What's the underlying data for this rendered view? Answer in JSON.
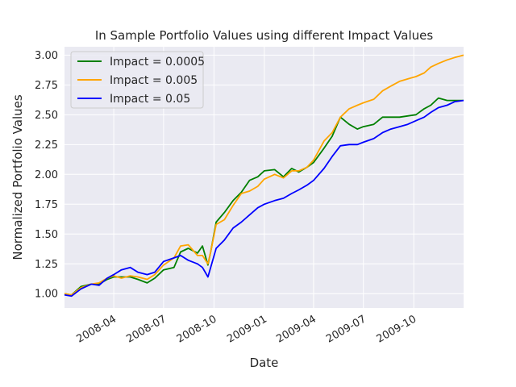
{
  "chart_data": {
    "type": "line",
    "title": "In Sample Portfolio Values using different Impact Values",
    "xlabel": "Date",
    "ylabel": "Normalized Portfolio Values",
    "xlim": [
      "2008-01-02",
      "2009-12-31"
    ],
    "ylim": [
      0.88,
      3.07
    ],
    "grid": true,
    "background": "#eaeaf2",
    "legend_position": "top-left",
    "x_ticks": [
      {
        "date": "2008-04-01",
        "label": "2008-04"
      },
      {
        "date": "2008-07-01",
        "label": "2008-07"
      },
      {
        "date": "2008-10-01",
        "label": "2008-10"
      },
      {
        "date": "2009-01-01",
        "label": "2009-01"
      },
      {
        "date": "2009-04-01",
        "label": "2009-04"
      },
      {
        "date": "2009-07-01",
        "label": "2009-07"
      },
      {
        "date": "2009-10-01",
        "label": "2009-10"
      }
    ],
    "y_ticks": [
      1.0,
      1.25,
      1.5,
      1.75,
      2.0,
      2.25,
      2.5,
      2.75,
      3.0
    ],
    "y_tick_labels": [
      "1.00",
      "1.25",
      "1.50",
      "1.75",
      "2.00",
      "2.25",
      "2.50",
      "2.75",
      "3.00"
    ],
    "series": [
      {
        "name": "Impact = 0.0005",
        "color": "#008000",
        "points": [
          [
            "2008-01-02",
            1.0
          ],
          [
            "2008-01-15",
            0.99
          ],
          [
            "2008-02-01",
            1.06
          ],
          [
            "2008-02-20",
            1.08
          ],
          [
            "2008-03-05",
            1.08
          ],
          [
            "2008-03-20",
            1.12
          ],
          [
            "2008-04-01",
            1.14
          ],
          [
            "2008-04-15",
            1.14
          ],
          [
            "2008-05-01",
            1.14
          ],
          [
            "2008-05-15",
            1.12
          ],
          [
            "2008-06-01",
            1.09
          ],
          [
            "2008-06-15",
            1.13
          ],
          [
            "2008-07-01",
            1.2
          ],
          [
            "2008-07-20",
            1.22
          ],
          [
            "2008-08-01",
            1.35
          ],
          [
            "2008-08-15",
            1.38
          ],
          [
            "2008-09-01",
            1.34
          ],
          [
            "2008-09-10",
            1.4
          ],
          [
            "2008-09-20",
            1.24
          ],
          [
            "2008-09-25",
            1.35
          ],
          [
            "2008-10-05",
            1.6
          ],
          [
            "2008-10-20",
            1.68
          ],
          [
            "2008-11-05",
            1.78
          ],
          [
            "2008-11-20",
            1.85
          ],
          [
            "2008-12-05",
            1.95
          ],
          [
            "2008-12-20",
            1.98
          ],
          [
            "2009-01-01",
            2.03
          ],
          [
            "2009-01-20",
            2.04
          ],
          [
            "2009-02-05",
            1.98
          ],
          [
            "2009-02-20",
            2.05
          ],
          [
            "2009-03-05",
            2.02
          ],
          [
            "2009-03-20",
            2.06
          ],
          [
            "2009-04-01",
            2.1
          ],
          [
            "2009-04-20",
            2.22
          ],
          [
            "2009-05-05",
            2.32
          ],
          [
            "2009-05-20",
            2.48
          ],
          [
            "2009-06-05",
            2.42
          ],
          [
            "2009-06-20",
            2.38
          ],
          [
            "2009-07-01",
            2.4
          ],
          [
            "2009-07-20",
            2.42
          ],
          [
            "2009-08-05",
            2.48
          ],
          [
            "2009-08-20",
            2.48
          ],
          [
            "2009-09-05",
            2.48
          ],
          [
            "2009-09-20",
            2.49
          ],
          [
            "2009-10-05",
            2.5
          ],
          [
            "2009-10-20",
            2.55
          ],
          [
            "2009-11-01",
            2.58
          ],
          [
            "2009-11-15",
            2.64
          ],
          [
            "2009-12-01",
            2.62
          ],
          [
            "2009-12-15",
            2.62
          ],
          [
            "2009-12-31",
            2.62
          ]
        ]
      },
      {
        "name": "Impact = 0.005",
        "color": "#ffa500",
        "points": [
          [
            "2008-01-02",
            1.0
          ],
          [
            "2008-01-15",
            0.99
          ],
          [
            "2008-02-01",
            1.05
          ],
          [
            "2008-02-20",
            1.08
          ],
          [
            "2008-03-05",
            1.09
          ],
          [
            "2008-03-20",
            1.13
          ],
          [
            "2008-04-01",
            1.15
          ],
          [
            "2008-04-15",
            1.13
          ],
          [
            "2008-05-01",
            1.15
          ],
          [
            "2008-05-15",
            1.14
          ],
          [
            "2008-06-01",
            1.12
          ],
          [
            "2008-06-15",
            1.16
          ],
          [
            "2008-07-01",
            1.24
          ],
          [
            "2008-07-20",
            1.3
          ],
          [
            "2008-08-01",
            1.4
          ],
          [
            "2008-08-15",
            1.41
          ],
          [
            "2008-09-01",
            1.32
          ],
          [
            "2008-09-10",
            1.32
          ],
          [
            "2008-09-20",
            1.25
          ],
          [
            "2008-09-25",
            1.35
          ],
          [
            "2008-10-05",
            1.58
          ],
          [
            "2008-10-20",
            1.62
          ],
          [
            "2008-11-05",
            1.74
          ],
          [
            "2008-11-20",
            1.84
          ],
          [
            "2008-12-05",
            1.86
          ],
          [
            "2008-12-20",
            1.9
          ],
          [
            "2009-01-01",
            1.96
          ],
          [
            "2009-01-20",
            2.0
          ],
          [
            "2009-02-05",
            1.97
          ],
          [
            "2009-02-20",
            2.03
          ],
          [
            "2009-03-05",
            2.03
          ],
          [
            "2009-03-20",
            2.06
          ],
          [
            "2009-04-01",
            2.12
          ],
          [
            "2009-04-20",
            2.28
          ],
          [
            "2009-05-05",
            2.35
          ],
          [
            "2009-05-20",
            2.48
          ],
          [
            "2009-06-05",
            2.55
          ],
          [
            "2009-06-20",
            2.58
          ],
          [
            "2009-07-01",
            2.6
          ],
          [
            "2009-07-20",
            2.63
          ],
          [
            "2009-08-05",
            2.7
          ],
          [
            "2009-08-20",
            2.74
          ],
          [
            "2009-09-05",
            2.78
          ],
          [
            "2009-09-20",
            2.8
          ],
          [
            "2009-10-05",
            2.82
          ],
          [
            "2009-10-20",
            2.85
          ],
          [
            "2009-11-01",
            2.9
          ],
          [
            "2009-11-15",
            2.93
          ],
          [
            "2009-12-01",
            2.96
          ],
          [
            "2009-12-15",
            2.98
          ],
          [
            "2009-12-31",
            3.0
          ]
        ]
      },
      {
        "name": "Impact = 0.05",
        "color": "#0000ff",
        "points": [
          [
            "2008-01-02",
            0.99
          ],
          [
            "2008-01-15",
            0.98
          ],
          [
            "2008-02-01",
            1.04
          ],
          [
            "2008-02-20",
            1.08
          ],
          [
            "2008-03-05",
            1.07
          ],
          [
            "2008-03-20",
            1.13
          ],
          [
            "2008-04-01",
            1.16
          ],
          [
            "2008-04-15",
            1.2
          ],
          [
            "2008-05-01",
            1.22
          ],
          [
            "2008-05-15",
            1.18
          ],
          [
            "2008-06-01",
            1.16
          ],
          [
            "2008-06-15",
            1.18
          ],
          [
            "2008-07-01",
            1.27
          ],
          [
            "2008-07-20",
            1.3
          ],
          [
            "2008-08-01",
            1.32
          ],
          [
            "2008-08-15",
            1.28
          ],
          [
            "2008-09-01",
            1.25
          ],
          [
            "2008-09-10",
            1.22
          ],
          [
            "2008-09-20",
            1.14
          ],
          [
            "2008-09-25",
            1.22
          ],
          [
            "2008-10-05",
            1.38
          ],
          [
            "2008-10-20",
            1.45
          ],
          [
            "2008-11-05",
            1.55
          ],
          [
            "2008-11-20",
            1.6
          ],
          [
            "2008-12-05",
            1.66
          ],
          [
            "2008-12-20",
            1.72
          ],
          [
            "2009-01-01",
            1.75
          ],
          [
            "2009-01-20",
            1.78
          ],
          [
            "2009-02-05",
            1.8
          ],
          [
            "2009-02-20",
            1.84
          ],
          [
            "2009-03-05",
            1.87
          ],
          [
            "2009-03-20",
            1.91
          ],
          [
            "2009-04-01",
            1.95
          ],
          [
            "2009-04-20",
            2.05
          ],
          [
            "2009-05-05",
            2.15
          ],
          [
            "2009-05-20",
            2.24
          ],
          [
            "2009-06-05",
            2.25
          ],
          [
            "2009-06-20",
            2.25
          ],
          [
            "2009-07-01",
            2.27
          ],
          [
            "2009-07-20",
            2.3
          ],
          [
            "2009-08-05",
            2.35
          ],
          [
            "2009-08-20",
            2.38
          ],
          [
            "2009-09-05",
            2.4
          ],
          [
            "2009-09-20",
            2.42
          ],
          [
            "2009-10-05",
            2.45
          ],
          [
            "2009-10-20",
            2.48
          ],
          [
            "2009-11-01",
            2.52
          ],
          [
            "2009-11-15",
            2.56
          ],
          [
            "2009-12-01",
            2.58
          ],
          [
            "2009-12-15",
            2.61
          ],
          [
            "2009-12-31",
            2.62
          ]
        ]
      }
    ]
  }
}
